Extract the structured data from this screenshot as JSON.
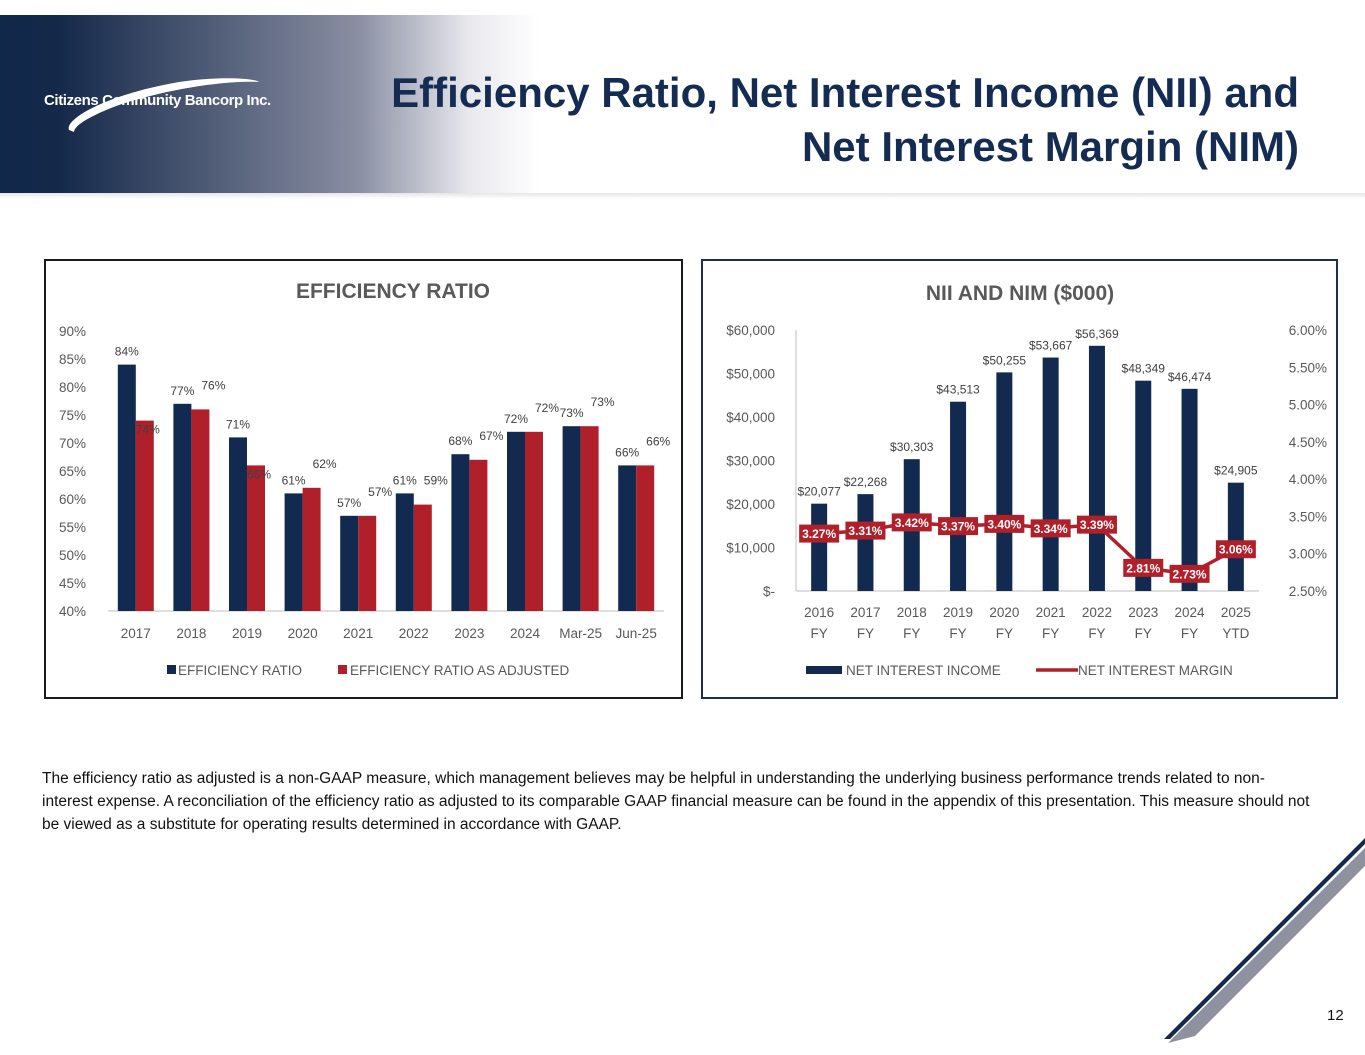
{
  "header": {
    "company": "Citizens Community Bancorp Inc.",
    "title_line1": "Efficiency Ratio, Net Interest Income (NII) and",
    "title_line2": "Net Interest Margin (NIM)"
  },
  "colors": {
    "navy": "#132a50",
    "red": "#b0202a",
    "title": "#142c52"
  },
  "chart_data": [
    {
      "type": "bar",
      "title": "EFFICIENCY RATIO",
      "categories": [
        "2017",
        "2018",
        "2019",
        "2020",
        "2021",
        "2022",
        "2023",
        "2024",
        "Mar-25",
        "Jun-25"
      ],
      "series": [
        {
          "name": "EFFICIENCY RATIO",
          "color": "#132a50",
          "values": [
            84,
            77,
            71,
            61,
            57,
            61,
            68,
            72,
            73,
            66
          ],
          "labels": [
            "84%",
            "77%",
            "71%",
            "61%",
            "57%",
            "61%",
            "68%",
            "72%",
            "73%",
            "66%"
          ]
        },
        {
          "name": "EFFICIENCY RATIO AS ADJUSTED",
          "color": "#b0202a",
          "values": [
            74,
            76,
            66,
            62,
            57,
            59,
            67,
            72,
            73,
            66
          ],
          "labels": [
            "74%",
            "76%",
            "66%",
            "62%",
            "57%",
            "59%",
            "67%",
            "72%",
            "73%",
            "66%"
          ]
        }
      ],
      "ylim": [
        40,
        90
      ],
      "yticks": [
        "40%",
        "45%",
        "50%",
        "55%",
        "60%",
        "65%",
        "70%",
        "75%",
        "80%",
        "85%",
        "90%"
      ],
      "legend": "bottom"
    },
    {
      "type": "bar+line",
      "title": "NII AND NIM ($000)",
      "categories": [
        "2016|FY",
        "2017|FY",
        "2018|FY",
        "2019|FY",
        "2020|FY",
        "2021|FY",
        "2022|FY",
        "2023|FY",
        "2024|FY",
        "2025|YTD"
      ],
      "bars": {
        "name": "NET INTEREST INCOME",
        "color": "#132a50",
        "values": [
          20077,
          22268,
          30303,
          43513,
          50255,
          53667,
          56369,
          48349,
          46474,
          24905
        ],
        "labels": [
          "$20,077",
          "$22,268",
          "$30,303",
          "$43,513",
          "$50,255",
          "$53,667",
          "$56,369",
          "$48,349",
          "$46,474",
          "$24,905"
        ]
      },
      "line": {
        "name": "NET INTEREST MARGIN",
        "color": "#b0202a",
        "values": [
          3.27,
          3.31,
          3.42,
          3.37,
          3.4,
          3.34,
          3.39,
          2.81,
          2.73,
          3.06
        ],
        "labels": [
          "3.27%",
          "3.31%",
          "3.42%",
          "3.37%",
          "3.40%",
          "3.34%",
          "3.39%",
          "2.81%",
          "2.73%",
          "3.06%"
        ]
      },
      "ylim_left": [
        0,
        60000
      ],
      "yticks_left": [
        "$-",
        "$10,000",
        "$20,000",
        "$30,000",
        "$40,000",
        "$50,000",
        "$60,000"
      ],
      "ylim_right": [
        2.5,
        6.0
      ],
      "yticks_right": [
        "2.50%",
        "3.00%",
        "3.50%",
        "4.00%",
        "4.50%",
        "5.00%",
        "5.50%",
        "6.00%"
      ],
      "legend": "bottom"
    }
  ],
  "footnote": "The efficiency ratio as adjusted is a non-GAAP measure, which management believes may be helpful in understanding the underlying business performance trends related to non-interest expense. A reconciliation of the efficiency ratio as adjusted to its comparable GAAP financial measure can be found in the appendix of this presentation. This measure should not be viewed as a substitute for operating results determined in accordance with GAAP.",
  "page_number": "12"
}
